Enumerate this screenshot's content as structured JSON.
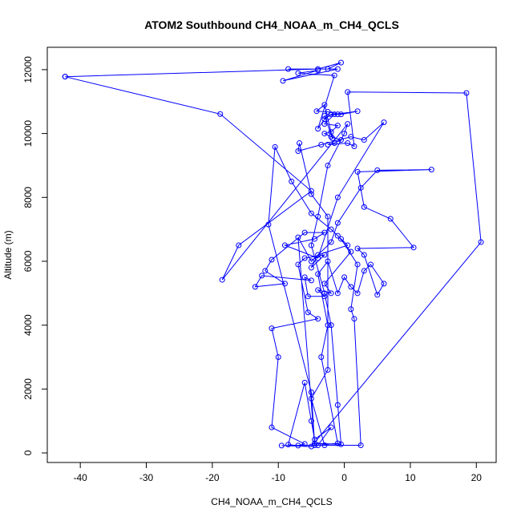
{
  "chart_data": {
    "type": "line",
    "title": "ATOM2 Southbound CH4_NOAA_m_CH4_QCLS",
    "xlabel": "CH4_NOAA_m_CH4_QCLS",
    "ylabel": "Altitude (m)",
    "xlim": [
      -45,
      23
    ],
    "ylim": [
      -300,
      12700
    ],
    "xticks": [
      -40,
      -30,
      -20,
      -10,
      0,
      10,
      20
    ],
    "yticks": [
      0,
      2000,
      4000,
      6000,
      8000,
      10000,
      12000
    ],
    "grid": false,
    "legend": "none",
    "series": [
      {
        "color": "#0000ff",
        "marker": "open-circle",
        "points": [
          [
            -42.3,
            11780
          ],
          [
            -4,
            12020
          ],
          [
            -0.5,
            12220
          ],
          [
            -2.5,
            12020
          ],
          [
            -8.5,
            12020
          ],
          [
            -1,
            12020
          ],
          [
            -9.3,
            11650
          ],
          [
            -4,
            11980
          ],
          [
            -7,
            11890
          ],
          [
            -1.5,
            11820
          ],
          [
            -4,
            10150
          ],
          [
            -3,
            10450
          ],
          [
            -2,
            10600
          ],
          [
            -1,
            10600
          ],
          [
            -3,
            10550
          ],
          [
            -1.8,
            9850
          ],
          [
            -3,
            10900
          ],
          [
            -4.2,
            10700
          ],
          [
            -2.5,
            10680
          ],
          [
            -0.5,
            10600
          ],
          [
            2,
            10700
          ],
          [
            -1.5,
            10600
          ],
          [
            -3,
            10300
          ],
          [
            -1,
            10250
          ],
          [
            -2,
            10050
          ],
          [
            -3,
            10000
          ],
          [
            -2,
            9900
          ],
          [
            -0.5,
            9800
          ],
          [
            -1.5,
            9700
          ],
          [
            -2.5,
            9650
          ],
          [
            0.5,
            9700
          ],
          [
            1.5,
            9600
          ],
          [
            0.5,
            11300
          ],
          [
            18.5,
            11270
          ],
          [
            20.7,
            6600
          ],
          [
            -5,
            200
          ],
          [
            -9.5,
            230
          ],
          [
            -3,
            240
          ],
          [
            -5,
            1700
          ],
          [
            -2.5,
            2600
          ],
          [
            -2.5,
            7400
          ],
          [
            -5,
            8100
          ],
          [
            -6.8,
            9700
          ],
          [
            -7,
            9450
          ],
          [
            -3.5,
            9650
          ],
          [
            1,
            9900
          ],
          [
            3,
            9800
          ],
          [
            6,
            10350
          ],
          [
            -1,
            8000
          ],
          [
            -4,
            6100
          ],
          [
            -9,
            6500
          ],
          [
            -4.5,
            6700
          ],
          [
            -3,
            6900
          ],
          [
            -6,
            6900
          ],
          [
            -11,
            6050
          ],
          [
            -12,
            5700
          ],
          [
            -9,
            5300
          ],
          [
            -13.5,
            5200
          ],
          [
            -12.5,
            5550
          ],
          [
            -5,
            5400
          ],
          [
            -6,
            5500
          ],
          [
            -5.5,
            4900
          ],
          [
            -3,
            4900
          ],
          [
            -4,
            5100
          ],
          [
            -2,
            5000
          ],
          [
            -3,
            5300
          ],
          [
            1,
            6300
          ],
          [
            -1,
            6800
          ],
          [
            0.5,
            6500
          ],
          [
            -4,
            6200
          ],
          [
            -5,
            5800
          ],
          [
            -3,
            6200
          ],
          [
            -6,
            6100
          ],
          [
            -7,
            5900
          ],
          [
            -5.5,
            4400
          ],
          [
            -4,
            4200
          ],
          [
            -11,
            3900
          ],
          [
            -10,
            3000
          ],
          [
            -11,
            800
          ],
          [
            -6,
            280
          ],
          [
            -7,
            230
          ],
          [
            -8.5,
            260
          ],
          [
            -6,
            2200
          ],
          [
            -5,
            1000
          ],
          [
            -4.5,
            420
          ],
          [
            -2,
            800
          ],
          [
            -4,
            240
          ],
          [
            -1,
            300
          ],
          [
            -3.5,
            3000
          ],
          [
            -2.5,
            4000
          ],
          [
            -4,
            5600
          ],
          [
            -2.5,
            6000
          ],
          [
            -1,
            5000
          ],
          [
            0,
            5500
          ],
          [
            1,
            5200
          ],
          [
            2,
            5000
          ],
          [
            3,
            5700
          ],
          [
            4,
            5900
          ],
          [
            6,
            5300
          ],
          [
            5,
            4950
          ],
          [
            3,
            6200
          ],
          [
            2,
            6400
          ],
          [
            10.5,
            6430
          ],
          [
            7,
            7330
          ],
          [
            3,
            7700
          ],
          [
            2,
            8800
          ],
          [
            13.2,
            8870
          ],
          [
            5,
            8850
          ],
          [
            2.5,
            8300
          ],
          [
            -1,
            7200
          ],
          [
            -2,
            6600
          ],
          [
            -5,
            6000
          ],
          [
            -7,
            6750
          ],
          [
            -4.5,
            240
          ],
          [
            2.5,
            240
          ],
          [
            1.5,
            4200
          ],
          [
            1,
            4500
          ],
          [
            2,
            5900
          ],
          [
            -0.5,
            6700
          ],
          [
            -2,
            7000
          ],
          [
            -5,
            7500
          ],
          [
            -8,
            8500
          ],
          [
            -10.5,
            9580
          ],
          [
            -11.5,
            7150
          ],
          [
            -5,
            1900
          ],
          [
            -4.5,
            300
          ],
          [
            -0.5,
            270
          ],
          [
            -1,
            1500
          ],
          [
            -2,
            4000
          ],
          [
            -3,
            5000
          ],
          [
            -5,
            6500
          ],
          [
            -4,
            7400
          ],
          [
            -2.5,
            9000
          ],
          [
            0,
            10000
          ],
          [
            0.5,
            10300
          ],
          [
            -18.5,
            5420
          ],
          [
            -16,
            6500
          ],
          [
            -5,
            8200
          ],
          [
            -18.8,
            10610
          ],
          [
            -42.3,
            11780
          ]
        ]
      }
    ]
  }
}
